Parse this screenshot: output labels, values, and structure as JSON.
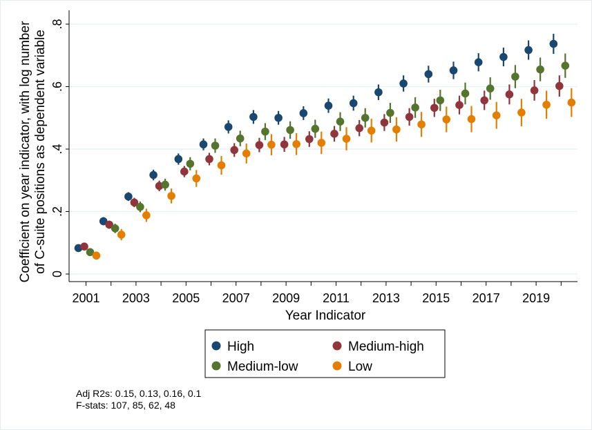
{
  "chart_data": {
    "type": "scatter",
    "title": "",
    "xlabel": "Year Indicator",
    "ylabel_line1": "Coefficient on year indicator, with log number",
    "ylabel_line2": "of C-suite positions as dependent variable",
    "x": [
      2001,
      2002,
      2003,
      2004,
      2005,
      2006,
      2007,
      2008,
      2009,
      2010,
      2011,
      2012,
      2013,
      2014,
      2015,
      2016,
      2017,
      2018,
      2019,
      2020
    ],
    "x_tick_labels": [
      "2001",
      "2003",
      "2005",
      "2007",
      "2009",
      "2011",
      "2013",
      "2015",
      "2017",
      "2019"
    ],
    "y_tick_values": [
      0,
      0.2,
      0.4,
      0.6,
      0.8
    ],
    "y_tick_labels": [
      "0",
      ".2",
      ".4",
      ".6",
      ".8"
    ],
    "ylim": [
      0,
      0.8
    ],
    "grid": true,
    "legend_position": "bottom",
    "series": [
      {
        "name": "High",
        "color": "#1a476f",
        "values": [
          0.083,
          0.169,
          0.248,
          0.317,
          0.368,
          0.415,
          0.471,
          0.503,
          0.5,
          0.515,
          0.539,
          0.547,
          0.582,
          0.61,
          0.64,
          0.652,
          0.678,
          0.695,
          0.717,
          0.737
        ],
        "ci_low": [
          0.073,
          0.156,
          0.234,
          0.3,
          0.35,
          0.396,
          0.45,
          0.481,
          0.478,
          0.493,
          0.516,
          0.523,
          0.557,
          0.584,
          0.613,
          0.624,
          0.649,
          0.665,
          0.686,
          0.705
        ],
        "ci_high": [
          0.093,
          0.182,
          0.262,
          0.334,
          0.386,
          0.434,
          0.492,
          0.525,
          0.522,
          0.537,
          0.562,
          0.571,
          0.607,
          0.636,
          0.667,
          0.68,
          0.707,
          0.725,
          0.748,
          0.769
        ]
      },
      {
        "name": "Medium-high",
        "color": "#90353b",
        "values": [
          0.088,
          0.158,
          0.229,
          0.282,
          0.328,
          0.368,
          0.397,
          0.413,
          0.415,
          0.432,
          0.449,
          0.467,
          0.485,
          0.503,
          0.532,
          0.541,
          0.556,
          0.575,
          0.588,
          0.602
        ],
        "ci_low": [
          0.078,
          0.145,
          0.214,
          0.265,
          0.31,
          0.348,
          0.375,
          0.39,
          0.391,
          0.407,
          0.424,
          0.441,
          0.458,
          0.475,
          0.503,
          0.511,
          0.525,
          0.543,
          0.555,
          0.568
        ],
        "ci_high": [
          0.098,
          0.171,
          0.244,
          0.299,
          0.346,
          0.388,
          0.419,
          0.436,
          0.439,
          0.457,
          0.474,
          0.493,
          0.512,
          0.531,
          0.561,
          0.571,
          0.587,
          0.607,
          0.621,
          0.636
        ]
      },
      {
        "name": "Medium-low",
        "color": "#55752f",
        "values": [
          0.07,
          0.146,
          0.215,
          0.286,
          0.353,
          0.411,
          0.434,
          0.456,
          0.461,
          0.465,
          0.488,
          0.5,
          0.516,
          0.533,
          0.556,
          0.578,
          0.594,
          0.632,
          0.655,
          0.667
        ],
        "ci_low": [
          0.059,
          0.131,
          0.198,
          0.267,
          0.332,
          0.388,
          0.409,
          0.429,
          0.433,
          0.436,
          0.458,
          0.469,
          0.484,
          0.5,
          0.522,
          0.543,
          0.558,
          0.595,
          0.617,
          0.628
        ],
        "ci_high": [
          0.081,
          0.161,
          0.232,
          0.305,
          0.374,
          0.434,
          0.459,
          0.483,
          0.489,
          0.494,
          0.518,
          0.531,
          0.548,
          0.566,
          0.59,
          0.613,
          0.63,
          0.669,
          0.693,
          0.706
        ]
      },
      {
        "name": "Low",
        "color": "#e37e00",
        "values": [
          0.059,
          0.126,
          0.188,
          0.25,
          0.306,
          0.348,
          0.386,
          0.414,
          0.416,
          0.42,
          0.433,
          0.459,
          0.463,
          0.479,
          0.495,
          0.496,
          0.508,
          0.517,
          0.542,
          0.549
        ],
        "ci_low": [
          0.046,
          0.108,
          0.167,
          0.226,
          0.279,
          0.318,
          0.354,
          0.38,
          0.381,
          0.384,
          0.396,
          0.421,
          0.424,
          0.439,
          0.454,
          0.454,
          0.465,
          0.473,
          0.497,
          0.503
        ],
        "ci_high": [
          0.072,
          0.144,
          0.209,
          0.274,
          0.333,
          0.378,
          0.418,
          0.448,
          0.451,
          0.456,
          0.47,
          0.497,
          0.502,
          0.519,
          0.536,
          0.538,
          0.551,
          0.561,
          0.587,
          0.595
        ]
      }
    ],
    "notes": [
      "Adj R2s: 0.15, 0.13, 0.16, 0.1",
      "F-stats: 107, 85, 62, 48"
    ]
  }
}
